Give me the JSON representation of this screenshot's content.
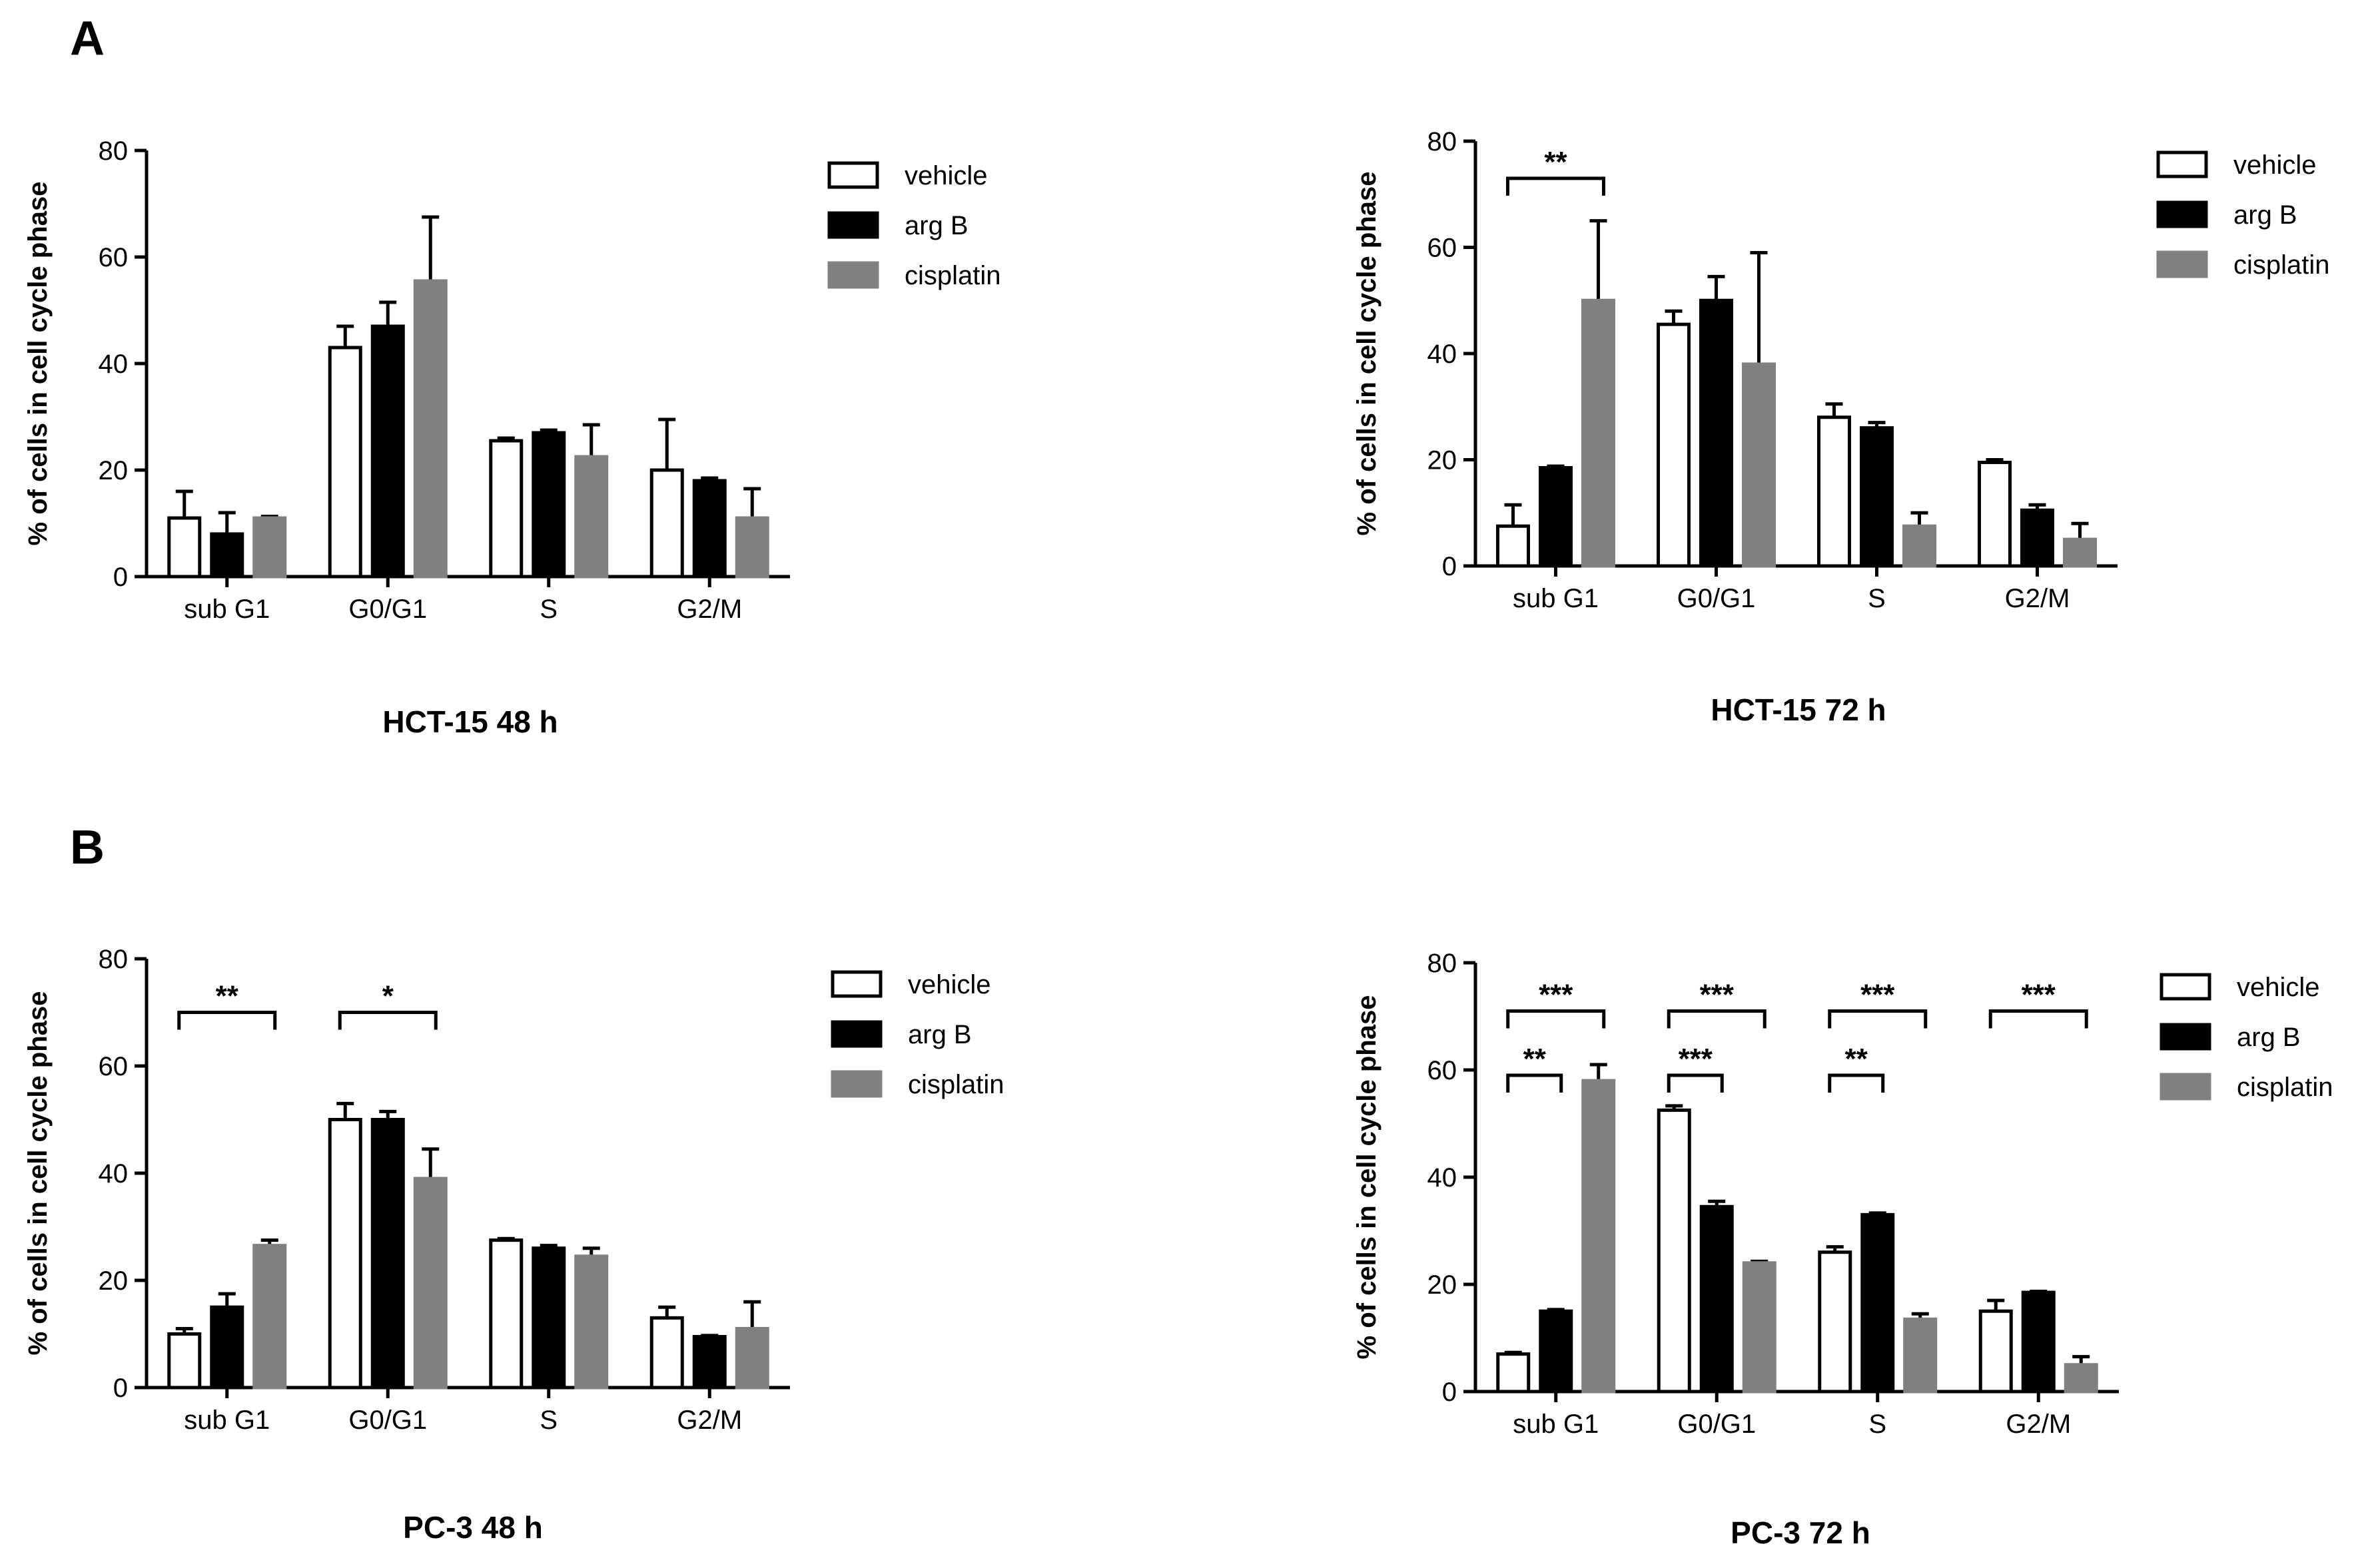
{
  "panels": [
    {
      "letter": "A"
    },
    {
      "letter": "B"
    }
  ],
  "chart_data": [
    {
      "type": "bar",
      "title": "HCT-15 48 h",
      "xlabel": "",
      "ylabel": "% of cells in cell cycle phase",
      "ylim": [
        0,
        80
      ],
      "yticks": [
        0,
        20,
        40,
        60,
        80
      ],
      "categories": [
        "sub G1",
        "G0/G1",
        "S",
        "G2/M"
      ],
      "series": [
        {
          "name": "vehicle",
          "color": "#ffffff",
          "values": [
            11,
            43,
            25.5,
            20
          ],
          "errors": [
            5,
            4,
            0.5,
            9.5
          ]
        },
        {
          "name": "arg B",
          "color": "#000000",
          "values": [
            8,
            47,
            27,
            18
          ],
          "errors": [
            4,
            4.5,
            0.5,
            0.5
          ]
        },
        {
          "name": "cisplatin",
          "color": "#808080",
          "values": [
            11,
            55.5,
            22.5,
            11
          ],
          "errors": [
            0.3,
            12,
            6,
            5.5
          ]
        }
      ],
      "significance": [],
      "legend": "right",
      "grid": false
    },
    {
      "type": "bar",
      "title": "HCT-15 72 h",
      "xlabel": "",
      "ylabel": "% of cells in cell cycle phase",
      "ylim": [
        0,
        80
      ],
      "yticks": [
        0,
        20,
        40,
        60,
        80
      ],
      "categories": [
        "sub G1",
        "G0/G1",
        "S",
        "G2/M"
      ],
      "series": [
        {
          "name": "vehicle",
          "color": "#ffffff",
          "values": [
            7.5,
            45.5,
            28,
            19.5
          ],
          "errors": [
            4,
            2.5,
            2.5,
            0.5
          ]
        },
        {
          "name": "arg B",
          "color": "#000000",
          "values": [
            18.5,
            50,
            26,
            10.5
          ],
          "errors": [
            0.3,
            4.5,
            1,
            1
          ]
        },
        {
          "name": "cisplatin",
          "color": "#808080",
          "values": [
            50,
            38,
            7.5,
            5
          ],
          "errors": [
            15,
            21,
            2.5,
            3
          ]
        }
      ],
      "significance": [
        {
          "cat": 0,
          "from": 0,
          "to": 2,
          "label": "**",
          "y": 73
        }
      ],
      "legend": "right",
      "grid": false
    },
    {
      "type": "bar",
      "title": "PC-3 48 h",
      "xlabel": "",
      "ylabel": "% of cells in cell cycle phase",
      "ylim": [
        0,
        80
      ],
      "yticks": [
        0,
        20,
        40,
        60,
        80
      ],
      "categories": [
        "sub G1",
        "G0/G1",
        "S",
        "G2/M"
      ],
      "series": [
        {
          "name": "vehicle",
          "color": "#ffffff",
          "values": [
            10,
            50,
            27.5,
            13
          ],
          "errors": [
            1,
            3,
            0.3,
            2
          ]
        },
        {
          "name": "arg B",
          "color": "#000000",
          "values": [
            15,
            50,
            26,
            9.5
          ],
          "errors": [
            2.5,
            1.5,
            0.5,
            0.2
          ]
        },
        {
          "name": "cisplatin",
          "color": "#808080",
          "values": [
            26.5,
            39,
            24.5,
            11
          ],
          "errors": [
            1,
            5.5,
            1.5,
            5
          ]
        }
      ],
      "significance": [
        {
          "cat": 0,
          "from": 0,
          "to": 2,
          "label": "**",
          "y": 70
        },
        {
          "cat": 1,
          "from": 0,
          "to": 2,
          "label": "*",
          "y": 70
        }
      ],
      "legend": "right",
      "grid": false
    },
    {
      "type": "bar",
      "title": "PC-3 72 h",
      "xlabel": "",
      "ylabel": "% of cells in cell cycle phase",
      "ylim": [
        0,
        80
      ],
      "yticks": [
        0,
        20,
        40,
        60,
        80
      ],
      "categories": [
        "sub G1",
        "G0/G1",
        "S",
        "G2/M"
      ],
      "series": [
        {
          "name": "vehicle",
          "color": "#ffffff",
          "values": [
            7,
            52.5,
            26,
            15
          ],
          "errors": [
            0.3,
            0.8,
            1,
            2
          ]
        },
        {
          "name": "arg B",
          "color": "#000000",
          "values": [
            15,
            34.5,
            33,
            18.5
          ],
          "errors": [
            0.3,
            1,
            0.3,
            0.2
          ]
        },
        {
          "name": "cisplatin",
          "color": "#808080",
          "values": [
            58,
            24,
            13.5,
            5
          ],
          "errors": [
            3,
            0.3,
            1,
            1.5
          ]
        }
      ],
      "significance": [
        {
          "cat": 0,
          "from": 0,
          "to": 2,
          "label": "***",
          "y": 71
        },
        {
          "cat": 0,
          "from": 0,
          "to": 1,
          "label": "**",
          "y": 59
        },
        {
          "cat": 1,
          "from": 0,
          "to": 2,
          "label": "***",
          "y": 71
        },
        {
          "cat": 1,
          "from": 0,
          "to": 1,
          "label": "***",
          "y": 59
        },
        {
          "cat": 2,
          "from": 0,
          "to": 2,
          "label": "***",
          "y": 71
        },
        {
          "cat": 2,
          "from": 0,
          "to": 1,
          "label": "**",
          "y": 59
        },
        {
          "cat": 3,
          "from": 0,
          "to": 2,
          "label": "***",
          "y": 71
        }
      ],
      "legend": "right",
      "grid": false
    }
  ]
}
